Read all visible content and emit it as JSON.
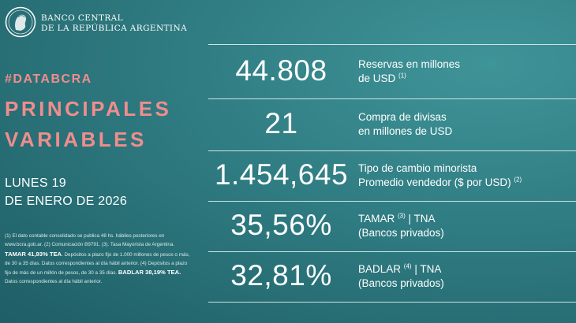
{
  "bank": {
    "line1": "BANCO CENTRAL",
    "line2": "DE LA REPÚBLICA ARGENTINA"
  },
  "hashtag": "#DATABCRA",
  "title": {
    "line1": "PRINCIPALES",
    "line2": "VARIABLES"
  },
  "date": {
    "line1": "LUNES 19",
    "line2": "DE ENERO DE 2026"
  },
  "footnote": {
    "p1": "(1) El dato contable consolidado se publica 48 hs. hábiles posteriores en www.bcra.gob.ar. (2) Comunicación B9791. (3). Tasa Mayorista de Argentina.",
    "tamar": "TAMAR 41,93% TEA",
    "p2": ". Depósitos a plazo fijo de 1.000 millones de pesos o más, de 30 a 35 días. Datos correspondientes al día hábil anterior. (4) Depósitos a plazo fijo de más de un millón de pesos, de 30 a 35 días.",
    "badlar": "BADLAR 38,19% TEA.",
    "p3": " Datos correspondientes al día hábil anterior."
  },
  "rows": [
    {
      "value": "44.808",
      "line1": "Reservas en millones",
      "line2": "de USD",
      "sup2": "(1)"
    },
    {
      "value": "21",
      "line1": "Compra de divisas",
      "line2": "en millones de USD"
    },
    {
      "value": "1.454,645",
      "line1": "Tipo de cambio minorista",
      "line2": "Promedio vendedor ($ por USD)",
      "sup2": "(2)"
    },
    {
      "value": "35,56%",
      "line1": "TAMAR",
      "sup1": "(3)",
      "line1b": " | TNA",
      "line2": "(Bancos privados)"
    },
    {
      "value": "32,81%",
      "line1": "BADLAR",
      "sup1": "(4)",
      "line1b": " | TNA",
      "line2": "(Bancos privados)"
    }
  ],
  "colors": {
    "accent": "#f08d8d",
    "background": "#2f7c82"
  }
}
